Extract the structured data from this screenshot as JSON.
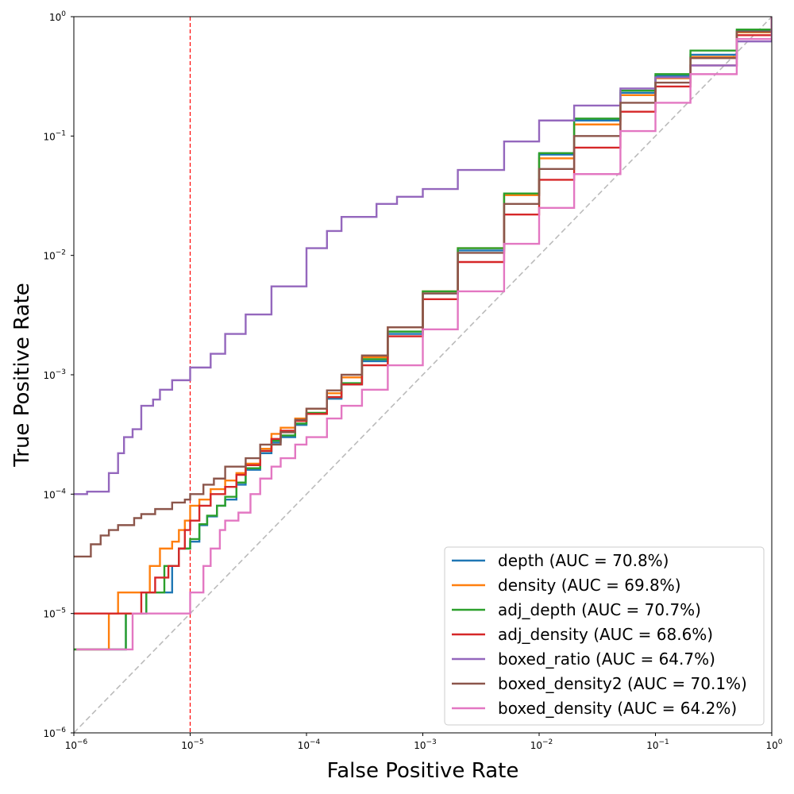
{
  "chart_data": {
    "type": "line",
    "title": "",
    "xlabel": "False Positive Rate",
    "ylabel": "True Positive Rate",
    "x_scale": "log",
    "y_scale": "log",
    "xlim": [
      1e-06,
      1
    ],
    "ylim": [
      1e-06,
      1
    ],
    "x_ticks": [
      {
        "base": "10",
        "exp": "−6",
        "value": 1e-06
      },
      {
        "base": "10",
        "exp": "−5",
        "value": 1e-05
      },
      {
        "base": "10",
        "exp": "−4",
        "value": 0.0001
      },
      {
        "base": "10",
        "exp": "−3",
        "value": 0.001
      },
      {
        "base": "10",
        "exp": "−2",
        "value": 0.01
      },
      {
        "base": "10",
        "exp": "−1",
        "value": 0.1
      },
      {
        "base": "10",
        "exp": "0",
        "value": 1
      }
    ],
    "y_ticks": [
      {
        "base": "10",
        "exp": "−6",
        "value": 1e-06
      },
      {
        "base": "10",
        "exp": "−5",
        "value": 1e-05
      },
      {
        "base": "10",
        "exp": "−4",
        "value": 0.0001
      },
      {
        "base": "10",
        "exp": "−3",
        "value": 0.001
      },
      {
        "base": "10",
        "exp": "−2",
        "value": 0.01
      },
      {
        "base": "10",
        "exp": "−1",
        "value": 0.1
      },
      {
        "base": "10",
        "exp": "0",
        "value": 1
      }
    ],
    "grid": false,
    "legend_position": "bottom-right",
    "reference_lines": [
      {
        "kind": "diagonal",
        "color": "#bbbbbb",
        "style": "dashed"
      },
      {
        "kind": "vertical",
        "x": 1e-05,
        "color": "#ff0000",
        "style": "dashed"
      }
    ],
    "series": [
      {
        "name": "depth (AUC = 70.8%)",
        "color": "#1f77b4",
        "step": true,
        "x": [
          1e-06,
          2.8e-06,
          4.2e-06,
          7e-06,
          8e-06,
          1e-05,
          1.2e-05,
          1.4e-05,
          1.7e-05,
          2e-05,
          2.5e-05,
          3e-05,
          4e-05,
          5e-05,
          6e-05,
          8e-05,
          0.0001,
          0.00015,
          0.0002,
          0.0003,
          0.0005,
          0.001,
          0.002,
          0.005,
          0.01,
          0.02,
          0.05,
          0.1,
          0.2,
          0.5,
          1
        ],
        "y": [
          5e-06,
          1e-05,
          1.5e-05,
          2.5e-05,
          3.5e-05,
          4e-05,
          5.5e-05,
          6.5e-05,
          8e-05,
          9e-05,
          0.00012,
          0.00016,
          0.00022,
          0.00027,
          0.0003,
          0.00038,
          0.00047,
          0.00063,
          0.00083,
          0.0013,
          0.0022,
          0.0048,
          0.011,
          0.032,
          0.07,
          0.135,
          0.23,
          0.32,
          0.48,
          0.76,
          1
        ]
      },
      {
        "name": "density (AUC = 69.8%)",
        "color": "#ff7f0e",
        "step": true,
        "x": [
          1e-06,
          2e-06,
          2.4e-06,
          4.5e-06,
          5.5e-06,
          7e-06,
          8e-06,
          9e-06,
          1e-05,
          1.2e-05,
          1.5e-05,
          2e-05,
          2.5e-05,
          3e-05,
          4e-05,
          5e-05,
          6e-05,
          8e-05,
          0.0001,
          0.00015,
          0.0002,
          0.0003,
          0.0005,
          0.001,
          0.002,
          0.005,
          0.01,
          0.02,
          0.05,
          0.1,
          0.2,
          0.5,
          1
        ],
        "y": [
          5e-06,
          1e-05,
          1.5e-05,
          2.5e-05,
          3.5e-05,
          4e-05,
          5e-05,
          6e-05,
          8e-05,
          9e-05,
          0.00011,
          0.00013,
          0.00015,
          0.00018,
          0.00024,
          0.00032,
          0.00036,
          0.00043,
          0.00052,
          0.0007,
          0.00095,
          0.0014,
          0.0025,
          0.005,
          0.0115,
          0.032,
          0.065,
          0.125,
          0.22,
          0.305,
          0.46,
          0.74,
          1
        ]
      },
      {
        "name": "adj_depth (AUC = 70.7%)",
        "color": "#2ca02c",
        "step": true,
        "x": [
          1e-06,
          2.8e-06,
          4.2e-06,
          6e-06,
          8e-06,
          1e-05,
          1.2e-05,
          1.4e-05,
          1.7e-05,
          2e-05,
          2.5e-05,
          3e-05,
          4e-05,
          5e-05,
          6e-05,
          8e-05,
          0.0001,
          0.00015,
          0.0002,
          0.0003,
          0.0005,
          0.001,
          0.002,
          0.005,
          0.01,
          0.02,
          0.05,
          0.1,
          0.2,
          0.5,
          1
        ],
        "y": [
          5e-06,
          1e-05,
          1.5e-05,
          2.5e-05,
          3.5e-05,
          4.2e-05,
          5.6e-05,
          6.6e-05,
          8e-05,
          9.5e-05,
          0.000125,
          0.000165,
          0.00023,
          0.00028,
          0.00031,
          0.00039,
          0.00048,
          0.00065,
          0.00085,
          0.00135,
          0.0023,
          0.005,
          0.0115,
          0.033,
          0.072,
          0.14,
          0.24,
          0.33,
          0.52,
          0.78,
          1
        ]
      },
      {
        "name": "adj_density (AUC = 68.6%)",
        "color": "#d62728",
        "step": true,
        "x": [
          1e-06,
          3.8e-06,
          5e-06,
          6.5e-06,
          8e-06,
          9e-06,
          1e-05,
          1.2e-05,
          1.5e-05,
          2e-05,
          2.5e-05,
          3e-05,
          4e-05,
          5e-05,
          6e-05,
          8e-05,
          0.0001,
          0.00015,
          0.0002,
          0.0003,
          0.0005,
          0.001,
          0.002,
          0.005,
          0.01,
          0.02,
          0.05,
          0.1,
          0.2,
          0.5,
          1
        ],
        "y": [
          1e-05,
          1.5e-05,
          2e-05,
          2.5e-05,
          3.5e-05,
          5e-05,
          6e-05,
          8e-05,
          0.0001,
          0.000115,
          0.000145,
          0.000175,
          0.00023,
          0.00029,
          0.00034,
          0.00041,
          0.00047,
          0.00065,
          0.00083,
          0.0012,
          0.0021,
          0.0043,
          0.0088,
          0.022,
          0.043,
          0.08,
          0.16,
          0.26,
          0.39,
          0.7,
          1
        ]
      },
      {
        "name": "boxed_ratio (AUC = 64.7%)",
        "color": "#9467bd",
        "step": true,
        "x": [
          1e-06,
          1.3e-06,
          2e-06,
          2.4e-06,
          2.7e-06,
          3.2e-06,
          3.8e-06,
          4.8e-06,
          5.5e-06,
          7e-06,
          1e-05,
          1.5e-05,
          2e-05,
          3e-05,
          5e-05,
          0.0001,
          0.00015,
          0.0002,
          0.0004,
          0.0006,
          0.001,
          0.002,
          0.005,
          0.01,
          0.02,
          0.05,
          0.1,
          0.2,
          0.5,
          1
        ],
        "y": [
          0.0001,
          0.000105,
          0.00015,
          0.00022,
          0.0003,
          0.00035,
          0.00055,
          0.00062,
          0.00075,
          0.0009,
          0.00115,
          0.0015,
          0.0022,
          0.0032,
          0.0055,
          0.0115,
          0.016,
          0.021,
          0.027,
          0.031,
          0.036,
          0.052,
          0.09,
          0.135,
          0.18,
          0.25,
          0.31,
          0.39,
          0.62,
          1
        ]
      },
      {
        "name": "boxed_density2 (AUC = 70.1%)",
        "color": "#8c564b",
        "step": true,
        "x": [
          1e-06,
          1.4e-06,
          1.7e-06,
          2e-06,
          2.4e-06,
          3.3e-06,
          3.8e-06,
          5e-06,
          7e-06,
          9e-06,
          1e-05,
          1.3e-05,
          1.6e-05,
          2e-05,
          3e-05,
          4e-05,
          6e-05,
          8e-05,
          0.0001,
          0.00015,
          0.0002,
          0.0003,
          0.0005,
          0.001,
          0.002,
          0.005,
          0.01,
          0.02,
          0.05,
          0.1,
          0.2,
          0.5,
          1
        ],
        "y": [
          3e-05,
          3.8e-05,
          4.5e-05,
          5e-05,
          5.5e-05,
          6.3e-05,
          6.8e-05,
          7.5e-05,
          8.5e-05,
          9e-05,
          0.0001,
          0.00012,
          0.000135,
          0.00017,
          0.0002,
          0.00026,
          0.00033,
          0.00042,
          0.00052,
          0.00074,
          0.001,
          0.00145,
          0.0025,
          0.0048,
          0.0105,
          0.027,
          0.053,
          0.1,
          0.19,
          0.28,
          0.45,
          0.75,
          1
        ]
      },
      {
        "name": "boxed_density (AUC = 64.2%)",
        "color": "#e377c2",
        "step": true,
        "x": [
          1.05e-06,
          3.2e-06,
          1e-05,
          1.3e-05,
          1.5e-05,
          1.8e-05,
          2e-05,
          2.6e-05,
          3.3e-05,
          4e-05,
          5e-05,
          6e-05,
          8e-05,
          0.0001,
          0.00015,
          0.0002,
          0.0003,
          0.0005,
          0.001,
          0.002,
          0.005,
          0.01,
          0.02,
          0.05,
          0.1,
          0.2,
          0.5,
          1
        ],
        "y": [
          5e-06,
          1e-05,
          1.5e-05,
          2.5e-05,
          3.5e-05,
          5e-05,
          6e-05,
          7e-05,
          0.0001,
          0.000135,
          0.00017,
          0.0002,
          0.00026,
          0.0003,
          0.00043,
          0.00055,
          0.00075,
          0.0012,
          0.0024,
          0.005,
          0.0125,
          0.025,
          0.048,
          0.11,
          0.19,
          0.33,
          0.65,
          1
        ]
      }
    ]
  }
}
